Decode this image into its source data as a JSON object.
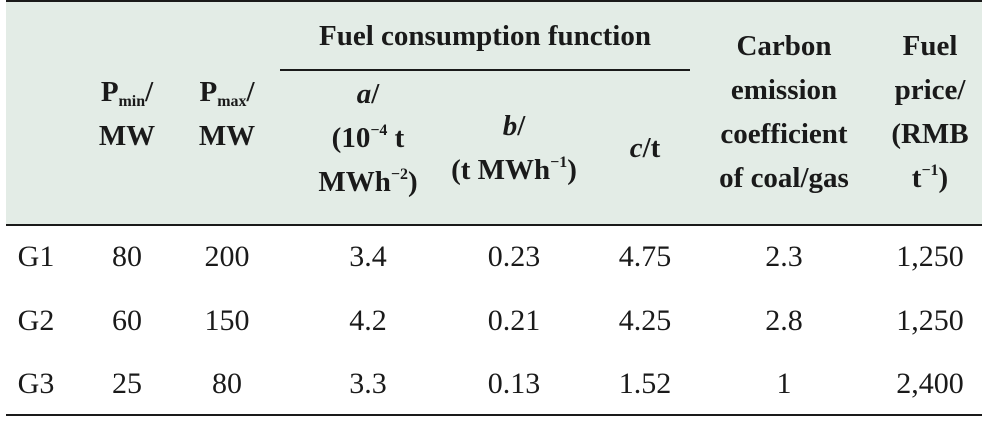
{
  "header": {
    "pmin": {
      "p": "P",
      "sub": "min",
      "suffix": "/",
      "unit": "MW"
    },
    "pmax": {
      "p": "P",
      "sub": "max",
      "suffix": "/",
      "unit": "MW"
    },
    "group": "Fuel consumption function",
    "a": {
      "var": "a",
      "slash": "/",
      "l2a": "(10",
      "l2sup": "−4",
      "l2b": " t",
      "l3a": "MWh",
      "l3sup": "−2",
      "l3b": ")"
    },
    "b": {
      "var": "b",
      "slash": "/",
      "l2a": "(t MWh",
      "l2sup": "−1",
      "l2b": ")"
    },
    "c": {
      "var": "c",
      "suffix": "/t"
    },
    "carbon": [
      "Carbon",
      "emission",
      "coefficient",
      "of coal/gas"
    ],
    "fuel": {
      "l1": "Fuel",
      "l2": "price/",
      "l3": "(RMB",
      "l4a": "t",
      "l4sup": "−1",
      "l4b": ")"
    }
  },
  "rows": [
    [
      "G1",
      "80",
      "200",
      "3.4",
      "0.23",
      "4.75",
      "2.3",
      "1,250"
    ],
    [
      "G2",
      "60",
      "150",
      "4.2",
      "0.21",
      "4.25",
      "2.8",
      "1,250"
    ],
    [
      "G3",
      "25",
      "80",
      "3.3",
      "0.13",
      "1.52",
      "1",
      "2,400"
    ]
  ]
}
